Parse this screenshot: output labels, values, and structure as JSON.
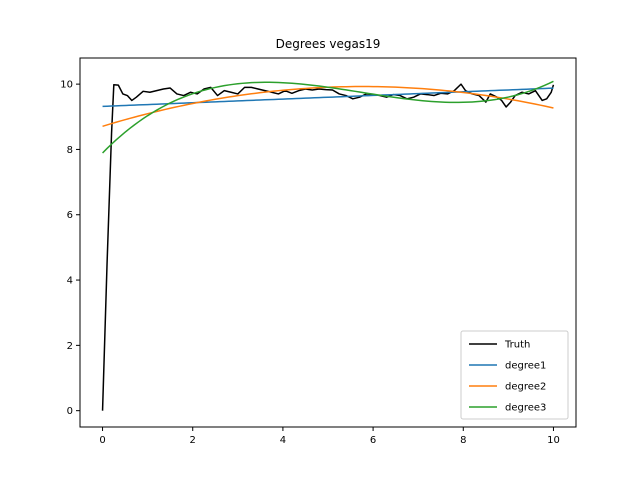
{
  "chart_data": {
    "type": "line",
    "title": "Degrees vegas19",
    "xlabel": "",
    "ylabel": "",
    "xlim": [
      -0.5,
      10.5
    ],
    "ylim": [
      -0.5,
      10.8
    ],
    "xticks": [
      0,
      2,
      4,
      6,
      8,
      10
    ],
    "yticks": [
      0,
      2,
      4,
      6,
      8,
      10
    ],
    "grid": false,
    "legend_position": "lower-right",
    "series": [
      {
        "name": "Truth",
        "color": "#000000",
        "x": [
          0,
          0.1,
          0.2,
          0.25,
          0.35,
          0.45,
          0.55,
          0.65,
          0.75,
          0.9,
          1.05,
          1.2,
          1.35,
          1.5,
          1.65,
          1.8,
          1.95,
          2.1,
          2.25,
          2.4,
          2.55,
          2.7,
          2.85,
          3.0,
          3.15,
          3.3,
          3.45,
          3.6,
          3.75,
          3.9,
          4.05,
          4.2,
          4.35,
          4.5,
          4.65,
          4.8,
          4.95,
          5.1,
          5.25,
          5.4,
          5.55,
          5.7,
          5.85,
          6.0,
          6.15,
          6.3,
          6.45,
          6.6,
          6.75,
          6.9,
          7.05,
          7.2,
          7.35,
          7.5,
          7.65,
          7.8,
          7.95,
          8.05,
          8.2,
          8.35,
          8.5,
          8.6,
          8.75,
          8.85,
          8.95,
          9.05,
          9.15,
          9.3,
          9.45,
          9.6,
          9.75,
          9.85,
          9.95,
          10.0
        ],
        "y": [
          0,
          4.5,
          8.5,
          9.98,
          9.97,
          9.7,
          9.65,
          9.5,
          9.6,
          9.78,
          9.75,
          9.8,
          9.85,
          9.88,
          9.7,
          9.65,
          9.75,
          9.7,
          9.85,
          9.9,
          9.65,
          9.8,
          9.75,
          9.7,
          9.9,
          9.9,
          9.85,
          9.8,
          9.75,
          9.7,
          9.8,
          9.72,
          9.8,
          9.85,
          9.82,
          9.85,
          9.83,
          9.82,
          9.7,
          9.65,
          9.55,
          9.6,
          9.7,
          9.68,
          9.65,
          9.6,
          9.68,
          9.65,
          9.55,
          9.6,
          9.7,
          9.68,
          9.65,
          9.72,
          9.7,
          9.8,
          10.0,
          9.8,
          9.7,
          9.65,
          9.45,
          9.7,
          9.6,
          9.5,
          9.3,
          9.45,
          9.65,
          9.75,
          9.7,
          9.8,
          9.5,
          9.55,
          9.75,
          9.98
        ]
      },
      {
        "name": "degree1",
        "color": "#1f77b4",
        "fit": "linear",
        "x_range": [
          0,
          10
        ]
      },
      {
        "name": "degree2",
        "color": "#ff7f0e",
        "fit": "quadratic",
        "x_range": [
          0,
          10
        ]
      },
      {
        "name": "degree3",
        "color": "#2ca02c",
        "fit": "cubic",
        "x_range": [
          0,
          10
        ]
      }
    ]
  }
}
